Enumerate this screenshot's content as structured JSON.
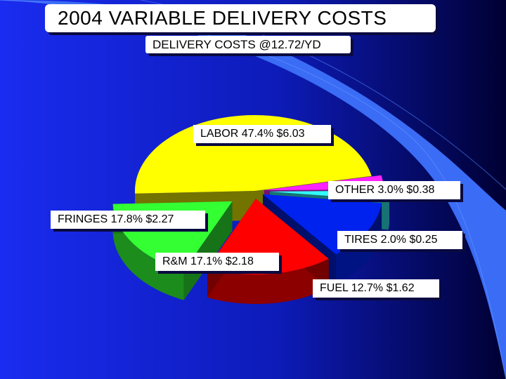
{
  "title": "2004  VARIABLE DELIVERY COSTS",
  "subtitle": "DELIVERY COSTS @12.72/YD",
  "colors": {
    "background_left": "#1a2cf0",
    "background_right": "#000033",
    "accent_swoosh": "#3a6cf5",
    "labor": "#ffff00",
    "fringes": "#33ff33",
    "rm": "#ff0000",
    "fuel": "#0022ee",
    "tires": "#33ffff",
    "other": "#ff22ff"
  },
  "chart_data": {
    "type": "pie",
    "title": "2004  VARIABLE DELIVERY COSTS",
    "subtitle": "DELIVERY COSTS @12.72/YD",
    "style": "3d-exploded",
    "slices": [
      {
        "key": "labor",
        "name": "LABOR",
        "percent": 47.4,
        "cost": 6.03,
        "label": "LABOR 47.4% $6.03"
      },
      {
        "key": "other",
        "name": "OTHER",
        "percent": 3.0,
        "cost": 0.38,
        "label": "OTHER 3.0% $0.38"
      },
      {
        "key": "tires",
        "name": "TIRES",
        "percent": 2.0,
        "cost": 0.25,
        "label": "TIRES 2.0% $0.25"
      },
      {
        "key": "fuel",
        "name": "FUEL",
        "percent": 12.7,
        "cost": 1.62,
        "label": "FUEL 12.7% $1.62"
      },
      {
        "key": "rm",
        "name": "R&M",
        "percent": 17.1,
        "cost": 2.18,
        "label": "R&M 17.1% $2.18"
      },
      {
        "key": "fringes",
        "name": "FRINGES",
        "percent": 17.8,
        "cost": 2.27,
        "label": "FRINGES 17.8% $2.27"
      }
    ]
  }
}
